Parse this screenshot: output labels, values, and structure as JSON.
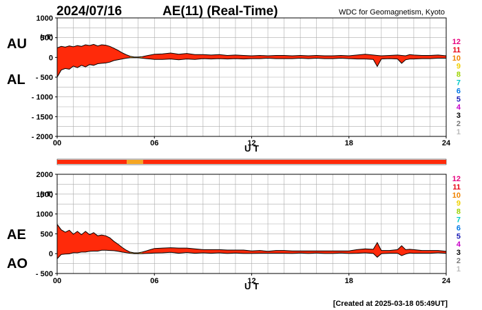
{
  "header": {
    "date": "2024/07/16",
    "title": "AE(11) (Real-Time)",
    "source": "WDC for Geomagnetism, Kyoto"
  },
  "footer": {
    "created": "[Created at 2025-03-18 05:49UT]"
  },
  "colors": {
    "fill_main": "#ff2a0a",
    "fill_alt": "#f5a623",
    "outline": "#000000",
    "grid": "#aaaaaa",
    "bar": "#ff2a0a",
    "bar_alt": "#f5a623"
  },
  "legend_levels": [
    {
      "label": "12",
      "color": "#e6007e"
    },
    {
      "label": "11",
      "color": "#e60012"
    },
    {
      "label": "10",
      "color": "#f08300"
    },
    {
      "label": "9",
      "color": "#f0d000"
    },
    {
      "label": "8",
      "color": "#9cd300"
    },
    {
      "label": "7",
      "color": "#00c8c8"
    },
    {
      "label": "6",
      "color": "#0078e6"
    },
    {
      "label": "5",
      "color": "#1a1ab4"
    },
    {
      "label": "4",
      "color": "#c800c8"
    },
    {
      "label": "3",
      "color": "#000000"
    },
    {
      "label": "2",
      "color": "#777777"
    },
    {
      "label": "1",
      "color": "#bbbbbb"
    }
  ],
  "status_bar": {
    "segments": [
      {
        "start": 0,
        "end": 4.3,
        "color": "#ff2a0a"
      },
      {
        "start": 4.3,
        "end": 5.3,
        "color": "#f5a623"
      },
      {
        "start": 5.3,
        "end": 24,
        "color": "#ff2a0a"
      }
    ]
  },
  "chart_data": [
    {
      "type": "area",
      "panel": "AU/AL",
      "side_labels": [
        "AU",
        "AL"
      ],
      "unit_label": "(nT)",
      "xlabel": "U T",
      "xlim": [
        0,
        24
      ],
      "xticks": [
        "00",
        "06",
        "12",
        "18",
        "24"
      ],
      "ylim": [
        -2000,
        1000
      ],
      "yticks": [
        "1000",
        "500",
        "0",
        "- 500",
        "- 1000",
        "- 1500",
        "- 2000"
      ],
      "x": [
        0,
        0.25,
        0.5,
        0.75,
        1,
        1.25,
        1.5,
        1.75,
        2,
        2.25,
        2.5,
        2.75,
        3,
        3.25,
        3.5,
        3.75,
        4,
        4.25,
        4.5,
        4.75,
        5,
        5.25,
        5.5,
        5.75,
        6,
        6.5,
        7,
        7.5,
        8,
        8.5,
        9,
        9.5,
        10,
        10.5,
        11,
        11.5,
        12,
        12.5,
        13,
        13.5,
        14,
        14.5,
        15,
        15.5,
        16,
        16.5,
        17,
        17.5,
        18,
        18.5,
        19,
        19.5,
        19.75,
        20,
        20.5,
        21,
        21.25,
        21.5,
        21.75,
        22,
        22.5,
        23,
        23.5,
        24
      ],
      "series": [
        {
          "name": "AU",
          "values": [
            240,
            280,
            260,
            290,
            270,
            300,
            280,
            320,
            300,
            330,
            290,
            320,
            310,
            280,
            230,
            180,
            120,
            70,
            30,
            10,
            10,
            20,
            40,
            60,
            80,
            90,
            110,
            80,
            100,
            70,
            70,
            60,
            70,
            50,
            60,
            50,
            40,
            50,
            40,
            50,
            50,
            40,
            50,
            40,
            50,
            40,
            40,
            50,
            40,
            60,
            80,
            60,
            50,
            40,
            50,
            60,
            50,
            40,
            70,
            60,
            50,
            50,
            60,
            40
          ]
        },
        {
          "name": "AL",
          "values": [
            -500,
            -320,
            -280,
            -300,
            -220,
            -260,
            -200,
            -240,
            -180,
            -200,
            -160,
            -150,
            -140,
            -120,
            -80,
            -60,
            -40,
            -20,
            -10,
            -10,
            -10,
            -20,
            -30,
            -40,
            -50,
            -50,
            -40,
            -60,
            -40,
            -50,
            -30,
            -40,
            -30,
            -40,
            -30,
            -40,
            -30,
            -30,
            -20,
            -30,
            -30,
            -30,
            -20,
            -30,
            -20,
            -30,
            -30,
            -20,
            -30,
            -40,
            -40,
            -50,
            -230,
            -40,
            -30,
            -40,
            -150,
            -60,
            -40,
            -40,
            -30,
            -30,
            -20,
            -20
          ]
        }
      ]
    },
    {
      "type": "area",
      "panel": "AE/AO",
      "side_labels": [
        "AE",
        "AO"
      ],
      "unit_label": "(nT)",
      "xlabel": "U T",
      "xlim": [
        0,
        24
      ],
      "xticks": [
        "00",
        "06",
        "12",
        "18",
        "24"
      ],
      "ylim": [
        -500,
        2000
      ],
      "yticks": [
        "2000",
        "1500",
        "1000",
        "500",
        "0",
        "- 500"
      ],
      "x": [
        0,
        0.25,
        0.5,
        0.75,
        1,
        1.25,
        1.5,
        1.75,
        2,
        2.25,
        2.5,
        2.75,
        3,
        3.25,
        3.5,
        3.75,
        4,
        4.25,
        4.5,
        4.75,
        5,
        5.25,
        5.5,
        5.75,
        6,
        6.5,
        7,
        7.5,
        8,
        8.5,
        9,
        9.5,
        10,
        10.5,
        11,
        11.5,
        12,
        12.5,
        13,
        13.5,
        14,
        14.5,
        15,
        15.5,
        16,
        16.5,
        17,
        17.5,
        18,
        18.5,
        19,
        19.5,
        19.75,
        20,
        20.5,
        21,
        21.25,
        21.5,
        21.75,
        22,
        22.5,
        23,
        23.5,
        24
      ],
      "series": [
        {
          "name": "AE",
          "values": [
            740,
            600,
            540,
            590,
            490,
            560,
            480,
            560,
            480,
            530,
            450,
            470,
            450,
            400,
            310,
            240,
            160,
            90,
            40,
            20,
            20,
            40,
            70,
            100,
            130,
            140,
            150,
            140,
            140,
            120,
            100,
            100,
            100,
            90,
            90,
            90,
            70,
            80,
            60,
            80,
            80,
            70,
            70,
            70,
            70,
            70,
            70,
            70,
            70,
            100,
            120,
            110,
            280,
            80,
            80,
            100,
            200,
            100,
            110,
            100,
            80,
            80,
            80,
            60
          ]
        },
        {
          "name": "AO",
          "values": [
            -130,
            -20,
            -10,
            -5,
            25,
            20,
            40,
            40,
            60,
            65,
            65,
            85,
            85,
            80,
            75,
            60,
            40,
            25,
            10,
            0,
            0,
            0,
            5,
            10,
            15,
            20,
            35,
            10,
            30,
            10,
            20,
            10,
            20,
            5,
            15,
            5,
            5,
            10,
            10,
            10,
            10,
            5,
            15,
            5,
            15,
            5,
            5,
            15,
            5,
            10,
            20,
            5,
            -90,
            0,
            10,
            10,
            -50,
            -10,
            15,
            10,
            10,
            10,
            20,
            10
          ]
        }
      ]
    }
  ]
}
